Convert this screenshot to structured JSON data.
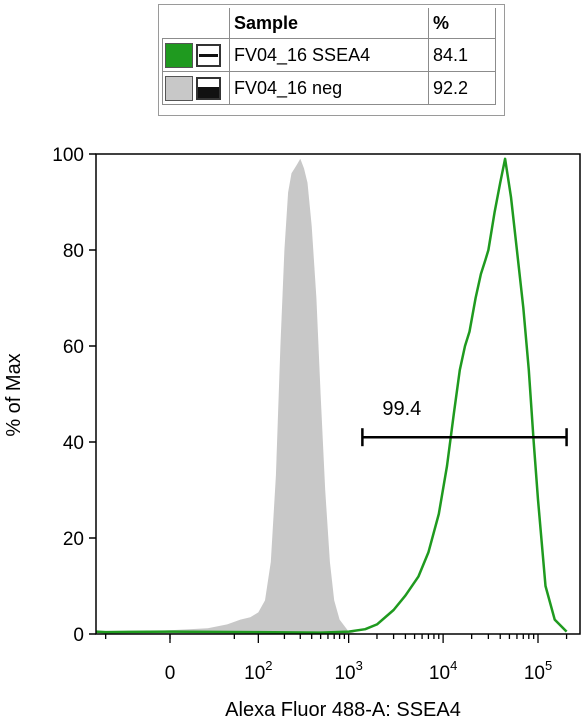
{
  "legend": {
    "header_sample": "Sample",
    "header_pct": "%",
    "rows": [
      {
        "color": "#1f9a1f",
        "line_style": "line",
        "sample": "FV04_16 SSEA4",
        "pct": "84.1"
      },
      {
        "color": "#c8c8c8",
        "line_style": "filled",
        "sample": "FV04_16 neg",
        "pct": "92.2"
      }
    ]
  },
  "chart_data": {
    "type": "line",
    "title": "",
    "xlabel": "Alexa Fluor 488-A: SSEA4",
    "ylabel": "% of Max",
    "x_scale": "biexponential",
    "x_tick_labels": [
      {
        "value": 0,
        "base": "0",
        "exp": ""
      },
      {
        "value": 100,
        "base": "10",
        "exp": "2"
      },
      {
        "value": 1000,
        "base": "10",
        "exp": "3"
      },
      {
        "value": 10000,
        "base": "10",
        "exp": "4"
      },
      {
        "value": 100000,
        "base": "10",
        "exp": "5"
      }
    ],
    "y_ticks": [
      0,
      20,
      40,
      60,
      80,
      100
    ],
    "ylim": [
      0,
      100
    ],
    "gate": {
      "label": "99.4",
      "x_start": 1400,
      "x_end": 200000,
      "y": 41
    },
    "series": [
      {
        "name": "FV04_16 neg",
        "style": "filled",
        "color": "#c8c8c8",
        "points": [
          [
            -100,
            0
          ],
          [
            -20,
            0.5
          ],
          [
            0,
            0.8
          ],
          [
            20,
            1.2
          ],
          [
            40,
            2
          ],
          [
            60,
            3
          ],
          [
            80,
            3.5
          ],
          [
            100,
            4.5
          ],
          [
            120,
            7
          ],
          [
            140,
            15
          ],
          [
            160,
            33
          ],
          [
            180,
            60
          ],
          [
            200,
            80
          ],
          [
            220,
            92
          ],
          [
            240,
            96
          ],
          [
            260,
            97
          ],
          [
            280,
            98
          ],
          [
            300,
            99
          ],
          [
            330,
            97
          ],
          [
            360,
            94
          ],
          [
            400,
            85
          ],
          [
            450,
            70
          ],
          [
            500,
            50
          ],
          [
            560,
            30
          ],
          [
            630,
            15
          ],
          [
            700,
            7
          ],
          [
            800,
            3
          ],
          [
            1000,
            0.5
          ],
          [
            1300,
            0
          ]
        ]
      },
      {
        "name": "FV04_16 SSEA4",
        "style": "line",
        "color": "#1f9a1f",
        "points": [
          [
            -100,
            0.5
          ],
          [
            -50,
            0.4
          ],
          [
            0,
            0.5
          ],
          [
            100,
            0.4
          ],
          [
            500,
            0.3
          ],
          [
            1000,
            0.5
          ],
          [
            1500,
            1
          ],
          [
            2000,
            2
          ],
          [
            3000,
            5
          ],
          [
            4000,
            8
          ],
          [
            5500,
            12
          ],
          [
            7000,
            17
          ],
          [
            9000,
            25
          ],
          [
            11000,
            35
          ],
          [
            13000,
            46
          ],
          [
            15000,
            55
          ],
          [
            17000,
            60
          ],
          [
            19000,
            63
          ],
          [
            22000,
            70
          ],
          [
            25000,
            75
          ],
          [
            28000,
            78
          ],
          [
            30000,
            80
          ],
          [
            35000,
            88
          ],
          [
            40000,
            94
          ],
          [
            45000,
            99
          ],
          [
            52000,
            91
          ],
          [
            60000,
            80
          ],
          [
            70000,
            68
          ],
          [
            80000,
            55
          ],
          [
            90000,
            40
          ],
          [
            100000,
            28
          ],
          [
            120000,
            10
          ],
          [
            150000,
            3
          ],
          [
            200000,
            0.5
          ]
        ]
      }
    ]
  }
}
